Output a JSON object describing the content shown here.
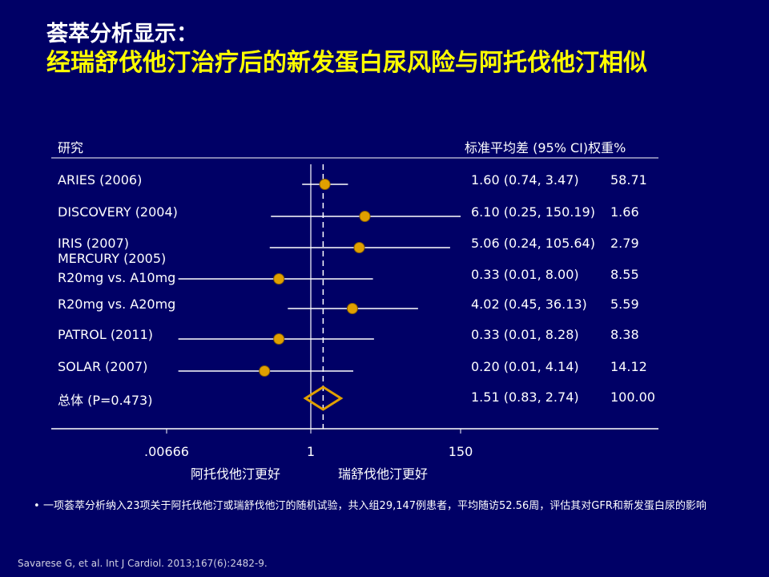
{
  "slide": {
    "title_line1": "荟萃分析显示：",
    "title_line2": "经瑞舒伐他汀治疗后的新发蛋白尿风险与阿托伐他汀相似",
    "note_bullet": "•",
    "note": "一项荟萃分析纳入23项关于阿托伐他汀或瑞舒伐他汀的随机试验，共入组29,147例患者，平均随访52.56周，评估其对GFR和新发蛋白尿的影响",
    "citation": "Savarese G, et al. Int J Cardiol. 2013;167(6):2482-9."
  },
  "chart_data": {
    "type": "forest",
    "header_study": "研究",
    "header_effect": "标准平均差 (95% CI)",
    "header_weight": "权重%",
    "x_scale": "log",
    "xlim": [
      0.00666,
      150
    ],
    "x_ticks": [
      ".00666",
      "1",
      "150"
    ],
    "x_tick_values": [
      0.00666,
      1,
      150
    ],
    "xlabel_left": "阿托伐他汀更好",
    "xlabel_right": "瑞舒伐他汀更好",
    "reference_line": 1,
    "overall_dashed_line": 1.51,
    "marker_color": "#e0a000",
    "line_color": "#ffffff",
    "studies": [
      {
        "label": "ARIES (2006)",
        "est": 1.6,
        "lo": 0.74,
        "hi": 3.47,
        "ci_text": "1.60 (0.74, 3.47)",
        "weight": "58.71"
      },
      {
        "label": "DISCOVERY (2004)",
        "est": 6.1,
        "lo": 0.25,
        "hi": 150.19,
        "ci_text": "6.10 (0.25, 150.19)",
        "weight": "1.66"
      },
      {
        "label": "IRIS (2007)",
        "est": 5.06,
        "lo": 0.24,
        "hi": 105.64,
        "ci_text": "5.06 (0.24, 105.64)",
        "weight": "2.79"
      },
      {
        "label": "MERCURY (2005)",
        "sublabel": "R20mg vs. A10mg",
        "est": 0.33,
        "lo": 0.01,
        "hi": 8.0,
        "ci_text": "0.33 (0.01, 8.00)",
        "weight": "8.55"
      },
      {
        "label": "R20mg vs. A20mg",
        "est": 4.02,
        "lo": 0.45,
        "hi": 36.13,
        "ci_text": "4.02 (0.45, 36.13)",
        "weight": "5.59"
      },
      {
        "label": "PATROL (2011)",
        "est": 0.33,
        "lo": 0.01,
        "hi": 8.28,
        "ci_text": "0.33 (0.01, 8.28)",
        "weight": "8.38"
      },
      {
        "label": "SOLAR (2007)",
        "est": 0.2,
        "lo": 0.01,
        "hi": 4.14,
        "ci_text": "0.20 (0.01, 4.14)",
        "weight": "14.12"
      }
    ],
    "overall": {
      "label": "总体  (P=0.473)",
      "est": 1.51,
      "lo": 0.83,
      "hi": 2.74,
      "ci_text": "1.51 (0.83, 2.74)",
      "weight": "100.00"
    }
  }
}
